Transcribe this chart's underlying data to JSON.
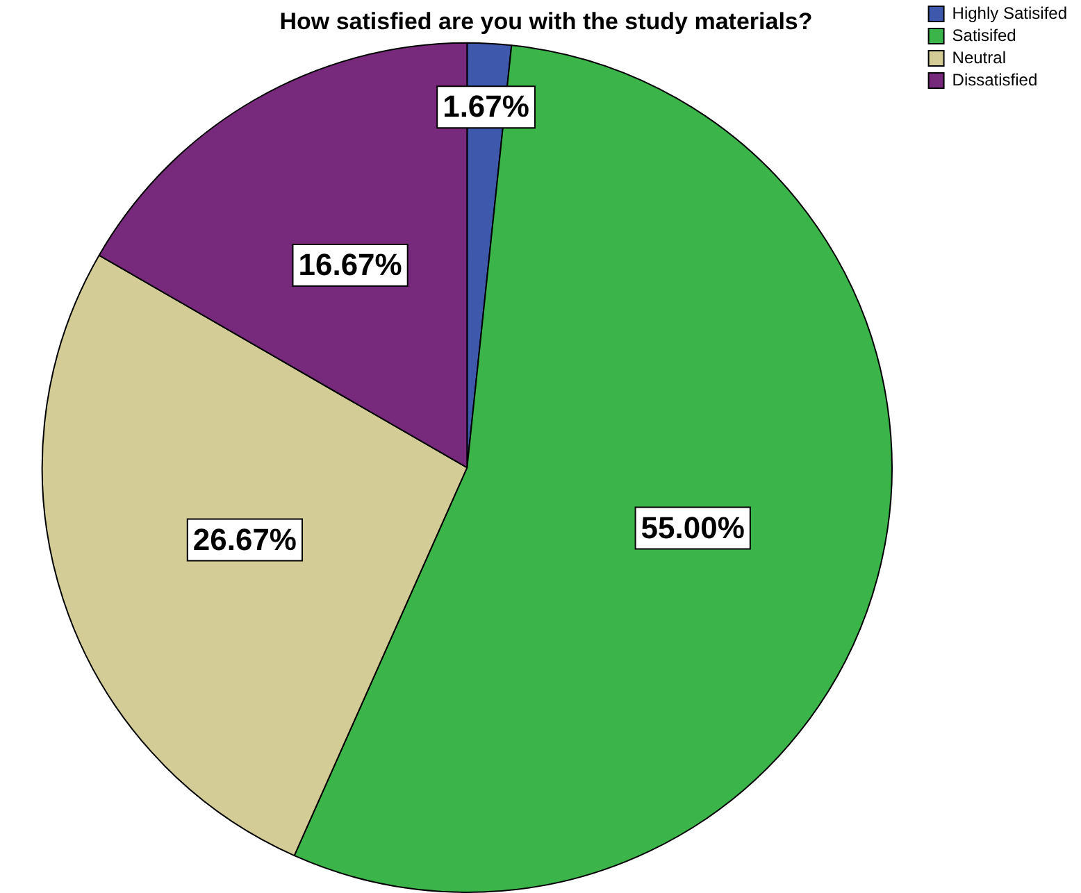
{
  "chart_data": {
    "type": "pie",
    "title": "How satisfied are you with the study materials?",
    "categories": [
      "Highly Satisifed",
      "Satisifed",
      "Neutral",
      "Dissatisfied"
    ],
    "values": [
      1.67,
      55.0,
      26.67,
      16.67
    ],
    "value_labels": [
      "1.67%",
      "55.00%",
      "26.67%",
      "16.67%"
    ],
    "colors": [
      "#3e58ac",
      "#3bb44a",
      "#d4cc96",
      "#772a7b"
    ],
    "legend": "top right"
  }
}
